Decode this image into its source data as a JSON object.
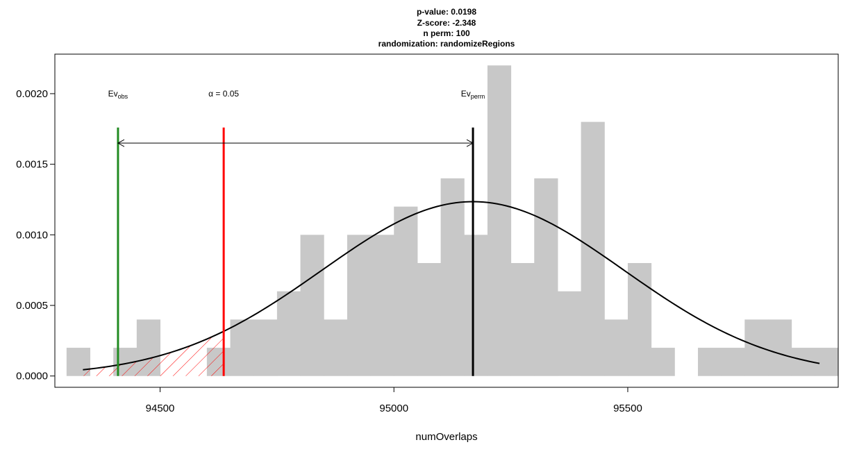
{
  "chart_data": {
    "type": "histogram",
    "title_lines": [
      "p-value:  0.0198",
      "Z-score:  -2.348",
      "n perm:  100",
      "randomization:  randomizeRegions"
    ],
    "xlabel": "numOverlaps",
    "ylabel": "",
    "xlim": [
      94275,
      95950
    ],
    "ylim": [
      -8e-05,
      0.00228
    ],
    "x_ticks": [
      94500,
      95000,
      95500
    ],
    "x_tick_labels": [
      "94500",
      "95000",
      "95500"
    ],
    "y_ticks": [
      0,
      0.0005,
      0.001,
      0.0015,
      0.002
    ],
    "y_tick_labels": [
      "0.0000",
      "0.0005",
      "0.0010",
      "0.0015",
      "0.0020"
    ],
    "bin_width": 50,
    "bins": [
      {
        "x0": 94300,
        "x1": 94350,
        "density": 0.0002
      },
      {
        "x0": 94350,
        "x1": 94400,
        "density": 0.0
      },
      {
        "x0": 94400,
        "x1": 94450,
        "density": 0.0002
      },
      {
        "x0": 94450,
        "x1": 94500,
        "density": 0.0004
      },
      {
        "x0": 94500,
        "x1": 94550,
        "density": 0.0
      },
      {
        "x0": 94550,
        "x1": 94600,
        "density": 0.0
      },
      {
        "x0": 94600,
        "x1": 94650,
        "density": 0.0002
      },
      {
        "x0": 94650,
        "x1": 94700,
        "density": 0.0004
      },
      {
        "x0": 94700,
        "x1": 94750,
        "density": 0.0004
      },
      {
        "x0": 94750,
        "x1": 94800,
        "density": 0.0006
      },
      {
        "x0": 94800,
        "x1": 94850,
        "density": 0.001
      },
      {
        "x0": 94850,
        "x1": 94900,
        "density": 0.0004
      },
      {
        "x0": 94900,
        "x1": 94950,
        "density": 0.001
      },
      {
        "x0": 94950,
        "x1": 95000,
        "density": 0.001
      },
      {
        "x0": 95000,
        "x1": 95050,
        "density": 0.0012
      },
      {
        "x0": 95050,
        "x1": 95100,
        "density": 0.0008
      },
      {
        "x0": 95100,
        "x1": 95150,
        "density": 0.0014
      },
      {
        "x0": 95150,
        "x1": 95200,
        "density": 0.001
      },
      {
        "x0": 95200,
        "x1": 95250,
        "density": 0.0022
      },
      {
        "x0": 95250,
        "x1": 95300,
        "density": 0.0008
      },
      {
        "x0": 95300,
        "x1": 95350,
        "density": 0.0014
      },
      {
        "x0": 95350,
        "x1": 95400,
        "density": 0.0006
      },
      {
        "x0": 95400,
        "x1": 95450,
        "density": 0.0018
      },
      {
        "x0": 95450,
        "x1": 95500,
        "density": 0.0004
      },
      {
        "x0": 95500,
        "x1": 95550,
        "density": 0.0008
      },
      {
        "x0": 95550,
        "x1": 95600,
        "density": 0.0002
      },
      {
        "x0": 95600,
        "x1": 95650,
        "density": 0.0
      },
      {
        "x0": 95650,
        "x1": 95700,
        "density": 0.0002
      },
      {
        "x0": 95700,
        "x1": 95750,
        "density": 0.0002
      },
      {
        "x0": 95750,
        "x1": 95800,
        "density": 0.0004
      },
      {
        "x0": 95800,
        "x1": 95850,
        "density": 0.0004
      },
      {
        "x0": 95850,
        "x1": 95900,
        "density": 0.0002
      },
      {
        "x0": 95900,
        "x1": 95950,
        "density": 0.0002
      }
    ],
    "normal_curve": {
      "mean": 95169,
      "sd": 323,
      "x_from": 94335,
      "x_to": 95910
    },
    "lines": {
      "ev_obs": 94410,
      "alpha": 94636,
      "ev_perm": 95169,
      "line_top": 0.00176
    },
    "arrow_y": 0.00165,
    "labels": {
      "ev_obs_main": "Ev",
      "ev_obs_sub": "obs",
      "alpha_text": "α = 0.05",
      "ev_perm_main": "Ev",
      "ev_perm_sub": "perm",
      "label_y": 0.00198
    },
    "colors": {
      "bars": "#c8c8c8",
      "curve": "#000000",
      "ev_obs": "#228b22",
      "alpha": "#ff0000",
      "ev_perm": "#000000",
      "hatch": "#ff0000"
    }
  }
}
